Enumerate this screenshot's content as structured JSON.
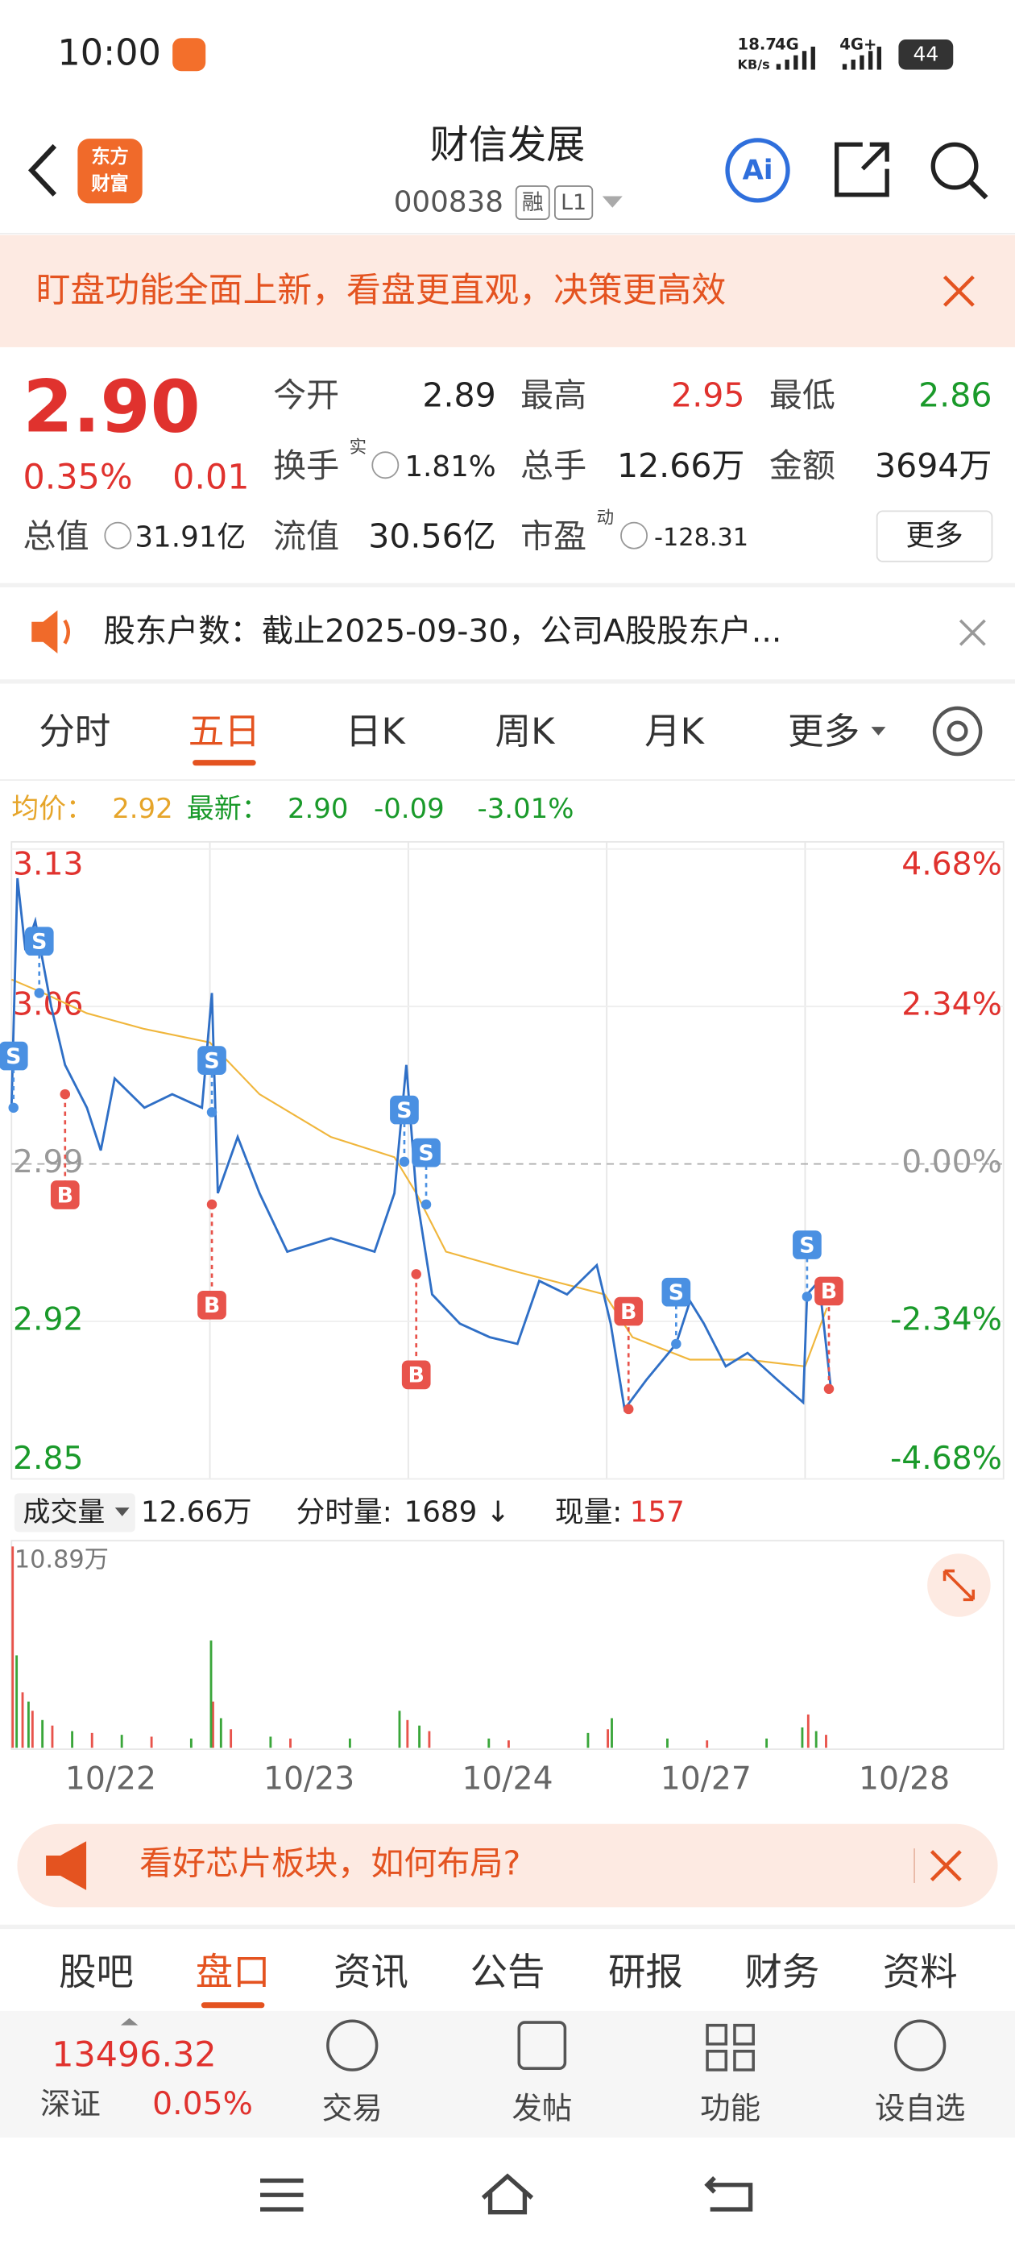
{
  "status": {
    "time": "10:00",
    "net_speed": "18.7",
    "net_unit": "KB/s",
    "sig1": "4G",
    "sig2": "4G+",
    "battery": "44"
  },
  "header": {
    "logo_top": "东方",
    "logo_bottom": "财富",
    "title": "财信发展",
    "code": "000838",
    "badge1": "融",
    "badge2": "L1",
    "ai": "Ai"
  },
  "banner": {
    "text": "盯盘功能全面上新，看盘更直观，决策更高效"
  },
  "quote": {
    "price": "2.90",
    "change_pct": "0.35%",
    "change": "0.01",
    "row1": [
      {
        "label": "今开",
        "value": "2.89"
      },
      {
        "label": "最高",
        "value": "2.95"
      },
      {
        "label": "最低",
        "value": "2.86"
      }
    ],
    "row2": [
      {
        "label": "换手",
        "sup": "实",
        "value": "1.81%"
      },
      {
        "label": "总手",
        "value": "12.66万"
      },
      {
        "label": "金额",
        "value": "3694万"
      }
    ],
    "row3": [
      {
        "label": "总值",
        "value": "31.91亿"
      },
      {
        "label": "流值",
        "value": "30.56亿"
      },
      {
        "label": "市盈",
        "sup": "动",
        "value": "-128.31"
      }
    ],
    "more": "更多"
  },
  "notice": {
    "text": "股东户数：截止2025-09-30，公司A股股东户..."
  },
  "tabs": {
    "items": [
      "分时",
      "五日",
      "日K",
      "周K",
      "月K",
      "更多"
    ],
    "selected": 1
  },
  "info": {
    "avg_label": "均价：",
    "avg": "2.92",
    "last_label": "最新：",
    "last": "2.90",
    "chg": "-0.09",
    "chg_pct": "-3.01%"
  },
  "chart": {
    "ylim": [
      2.85,
      3.13
    ],
    "yticks": [
      3.13,
      3.06,
      2.99,
      2.92,
      2.85
    ],
    "y2lim": [
      -4.68,
      4.68
    ],
    "y2ticks": [
      {
        "value": 4.68,
        "label": "4.68%"
      },
      {
        "value": 2.34,
        "label": "2.34%"
      },
      {
        "value": 0,
        "label": "0.00%"
      },
      {
        "value": -2.34,
        "label": "-2.34%"
      },
      {
        "value": -4.68,
        "label": "-4.68%"
      }
    ],
    "dates": [
      "10/22",
      "10/23",
      "10/24",
      "10/27",
      "10/28"
    ],
    "price": {
      "color": "#2f6fc6",
      "x": [
        0,
        0.03,
        0.07,
        0.12,
        0.2,
        0.27,
        0.38,
        0.45,
        0.52,
        0.67,
        0.81,
        0.96,
        1.01,
        1.04,
        1.14,
        1.25,
        1.39,
        1.61,
        1.83,
        1.93,
        1.99,
        2.04,
        2.12,
        2.26,
        2.41,
        2.55,
        2.66,
        2.8,
        2.95,
        3.02,
        3.09,
        3.2,
        3.35,
        3.42,
        3.49,
        3.6,
        3.71,
        3.86,
        3.99,
        4.01,
        4.07,
        4.13
      ],
      "values": [
        3.015,
        3.117,
        3.085,
        3.098,
        3.06,
        3.034,
        3.015,
        2.996,
        3.028,
        3.015,
        3.021,
        3.015,
        3.066,
        2.977,
        3.002,
        2.977,
        2.951,
        2.957,
        2.951,
        2.977,
        3.034,
        2.977,
        2.932,
        2.919,
        2.913,
        2.91,
        2.938,
        2.932,
        2.945,
        2.919,
        2.881,
        2.894,
        2.91,
        2.929,
        2.919,
        2.9,
        2.906,
        2.894,
        2.884,
        2.932,
        2.938,
        2.89
      ]
    },
    "avg": {
      "color": "#f0b63c",
      "x": [
        0,
        0.16,
        0.38,
        0.67,
        1,
        1.25,
        1.61,
        1.93,
        2.04,
        2.19,
        2.55,
        2.99,
        3.13,
        3.42,
        3.71,
        4,
        4.11
      ],
      "values": [
        3.072,
        3.066,
        3.057,
        3.05,
        3.044,
        3.021,
        3.002,
        2.993,
        2.977,
        2.951,
        2.942,
        2.932,
        2.913,
        2.903,
        2.903,
        2.9,
        2.926
      ]
    },
    "trades": [
      {
        "label": "S",
        "x": 0.14,
        "value": 3.066
      },
      {
        "label": "S",
        "x": 0.01,
        "value": 3.015
      },
      {
        "label": "S",
        "x": 1.01,
        "value": 3.013
      },
      {
        "label": "S",
        "x": 1.98,
        "value": 2.991
      },
      {
        "label": "S",
        "x": 2.09,
        "value": 2.972
      },
      {
        "label": "S",
        "x": 3.35,
        "value": 2.91
      },
      {
        "label": "S",
        "x": 4.01,
        "value": 2.931
      },
      {
        "label": "B",
        "x": 0.27,
        "value": 3.021
      },
      {
        "label": "B",
        "x": 1.01,
        "value": 2.972
      },
      {
        "label": "B",
        "x": 2.04,
        "value": 2.941
      },
      {
        "label": "B",
        "x": 3.11,
        "value": 2.881
      },
      {
        "label": "B",
        "x": 4.12,
        "value": 2.89
      }
    ]
  },
  "volume": {
    "label": "成交量",
    "total": "12.66万",
    "minute_label": "分时量:",
    "minute": "1689",
    "arrow": "↓",
    "now_label": "现量:",
    "now": "157",
    "vlim": [
      0,
      10.89
    ],
    "vtick": {
      "value": 10.89,
      "label": "10.89万"
    },
    "up": {
      "color": "#e8534b",
      "x": [
        0,
        0.05,
        0.1,
        0.2,
        0.4,
        0.7,
        1.01,
        1.1,
        1.4,
        1.99,
        2.1,
        2.5,
        3,
        3.5,
        4.01,
        4.1
      ],
      "values": [
        10.89,
        3,
        2,
        1.2,
        0.8,
        0.6,
        2.5,
        1,
        0.5,
        1.5,
        0.9,
        0.4,
        1,
        0.4,
        1.8,
        0.7
      ]
    },
    "down": {
      "color": "#3aa63a",
      "x": [
        0.02,
        0.08,
        0.15,
        0.3,
        0.55,
        0.9,
        1,
        1.05,
        1.3,
        1.7,
        1.95,
        2.05,
        2.4,
        2.9,
        3.02,
        3.3,
        3.8,
        3.98,
        4.05
      ],
      "values": [
        5,
        2.5,
        1.5,
        0.9,
        0.7,
        0.5,
        5.8,
        1.6,
        0.6,
        0.5,
        2,
        1.2,
        0.5,
        0.8,
        1.6,
        0.5,
        0.5,
        1.1,
        0.9
      ]
    }
  },
  "ad": {
    "text": "看好芯片板块，如何布局?"
  },
  "bottom_tabs": {
    "items": [
      "股吧",
      "盘口",
      "资讯",
      "公告",
      "研报",
      "财务",
      "资料"
    ],
    "selected": 1
  },
  "footer": {
    "index_value": "13496.32",
    "index_name": "深证",
    "index_pct": "0.05%",
    "buttons": [
      "交易",
      "发帖",
      "功能",
      "设自选"
    ]
  }
}
